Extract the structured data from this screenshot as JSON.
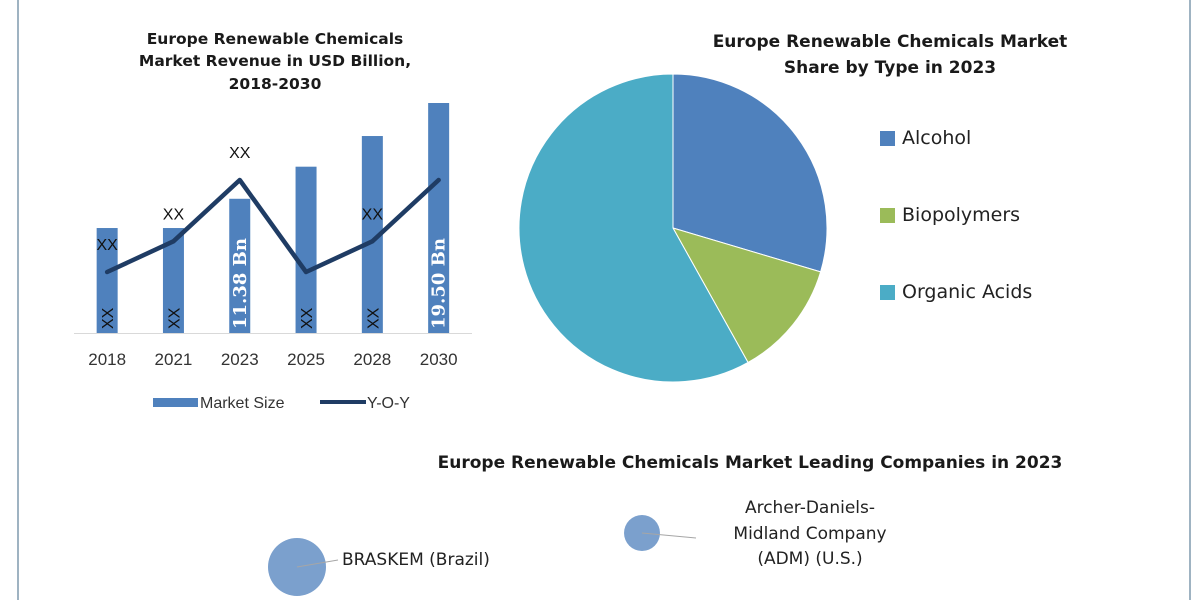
{
  "chart_data": [
    {
      "type": "bar",
      "title": "Europe Renewable Chemicals Market Revenue in USD Billion, 2018-2030",
      "title_lines": [
        "Europe Renewable Chemicals",
        "Market Revenue in USD Billion,",
        "2018-2030"
      ],
      "xlabel": "",
      "ylabel": "",
      "categories": [
        "2018",
        "2021",
        "2023",
        "2025",
        "2028",
        "2030"
      ],
      "ylim": [
        0,
        20
      ],
      "grid": false,
      "series": [
        {
          "name": "Market Size",
          "kind": "bar",
          "color": "#4f81bd",
          "values": [
            8.9,
            8.9,
            11.38,
            14.1,
            16.7,
            19.5
          ],
          "data_labels": [
            "XX",
            "XX",
            "11.38 Bn",
            "XX",
            "XX",
            "19.50 Bn"
          ]
        },
        {
          "name": "Y-O-Y",
          "kind": "line",
          "color": "#1f3c64",
          "relative_values": [
            0.25,
            0.5,
            1.0,
            0.25,
            0.5,
            1.0
          ],
          "data_labels": [
            "XX",
            "XX",
            "XX",
            "",
            "XX",
            ""
          ]
        }
      ],
      "legend": {
        "position": "bottom",
        "entries": [
          "Market Size",
          "Y-O-Y"
        ]
      }
    },
    {
      "type": "pie",
      "title": "Europe Renewable Chemicals Market Share by Type in 2023",
      "title_lines": [
        "Europe Renewable Chemicals Market",
        "Share by Type in 2023"
      ],
      "slices": [
        {
          "label": "Alcohol",
          "value": 29.6,
          "color": "#4f81bd"
        },
        {
          "label": "Biopolymers",
          "value": 12.3,
          "color": "#9bbb59"
        },
        {
          "label": "Organic Acids",
          "value": 58.1,
          "color": "#4bacc6"
        }
      ],
      "legend": {
        "position": "right"
      }
    },
    {
      "type": "scatter",
      "title": "Europe Renewable Chemicals Market Leading Companies in 2023",
      "points": [
        {
          "label": "BRASKEM (Brazil)",
          "label_lines": [
            "BRASKEM (Brazil)"
          ],
          "relative_size": 1.0,
          "color": "#7ba0cd"
        },
        {
          "label": "Archer-Daniels-Midland Company (ADM) (U.S.)",
          "label_lines": [
            "Archer-Daniels-",
            "Midland Company",
            "(ADM) (U.S.)"
          ],
          "relative_size": 0.62,
          "color": "#7ba0cd"
        }
      ]
    }
  ]
}
